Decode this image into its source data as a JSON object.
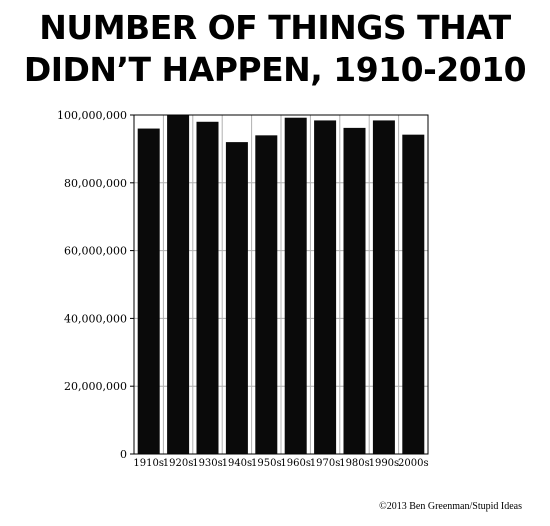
{
  "chart_data": {
    "type": "bar",
    "title_lines": [
      "NUMBER OF THINGS THAT",
      "DIDN’T HAPPEN, 1910-2010"
    ],
    "xlabel": "",
    "ylabel": "",
    "categories": [
      "1910s",
      "1920s",
      "1930s",
      "1940s",
      "1950s",
      "1960s",
      "1970s",
      "1980s",
      "1990s",
      "2000s"
    ],
    "values": [
      96000000,
      100000000,
      98000000,
      92000000,
      94000000,
      99200000,
      98400000,
      96200000,
      98400000,
      94200000
    ],
    "yticks": [
      0,
      20000000,
      40000000,
      60000000,
      80000000,
      100000000
    ],
    "ytick_labels": [
      "0",
      "20,000,000",
      "40,000,000",
      "60,000,000",
      "80,000,000",
      "100,000,000"
    ],
    "ylim": [
      0,
      100000000
    ],
    "grid": true,
    "bar_color": "#0a0a0a"
  },
  "credit": "©2013 Ben Greenman/Stupid Ideas"
}
